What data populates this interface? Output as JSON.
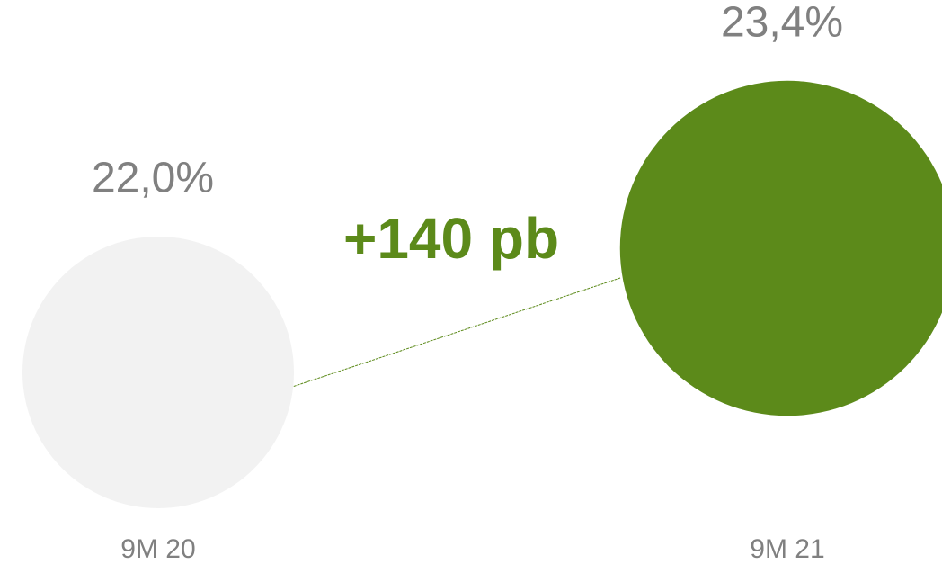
{
  "chart_data": {
    "type": "bubble",
    "categories": [
      "9M 20",
      "9M 21"
    ],
    "values": [
      22.0,
      23.4
    ],
    "value_labels": [
      "22,0%",
      "23,4%"
    ],
    "colors": [
      "#f2f2f2",
      "#5c8a1a"
    ],
    "annotation": "+140 pb"
  }
}
